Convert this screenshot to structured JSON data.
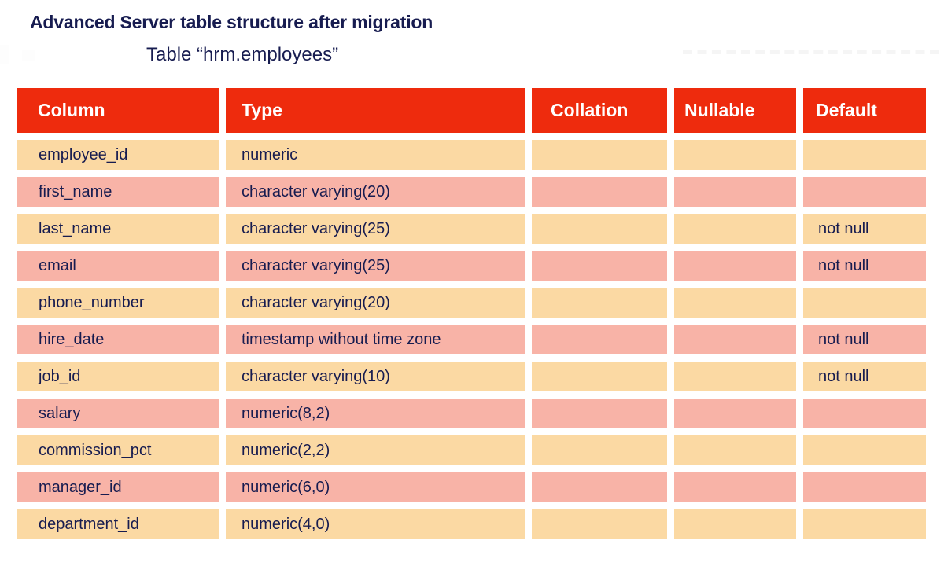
{
  "chart_data": {
    "type": "table",
    "title": "Advanced Server table structure after migration",
    "subtitle": "Table “hrm.employees”",
    "columns": [
      "Column",
      "Type",
      "Collation",
      "Nullable",
      "Default"
    ],
    "rows": [
      [
        "employee_id",
        "numeric",
        "",
        "",
        ""
      ],
      [
        "first_name",
        "character varying(20)",
        "",
        "",
        ""
      ],
      [
        "last_name",
        "character varying(25)",
        "",
        "",
        "not null"
      ],
      [
        "email",
        "character varying(25)",
        "",
        "",
        "not null"
      ],
      [
        "phone_number",
        "character varying(20)",
        "",
        "",
        ""
      ],
      [
        "hire_date",
        "timestamp without time zone",
        "",
        "",
        "not null"
      ],
      [
        "job_id",
        "character varying(10)",
        "",
        "",
        "not null"
      ],
      [
        "salary",
        "numeric(8,2)",
        "",
        "",
        ""
      ],
      [
        "commission_pct",
        "numeric(2,2)",
        "",
        "",
        ""
      ],
      [
        "manager_id",
        "numeric(6,0)",
        "",
        "",
        ""
      ],
      [
        "department_id",
        "numeric(4,0)",
        "",
        "",
        ""
      ]
    ],
    "layout": {
      "legend": "none",
      "grid": "off",
      "row_striping": "alternating peach/pink starting with peach"
    },
    "style": {
      "header_bg": "#ee2b0d",
      "header_text": "#ffffff",
      "row_alt1": "#fbd9a3",
      "row_alt2": "#f8b3a7",
      "text": "#171c50"
    }
  }
}
